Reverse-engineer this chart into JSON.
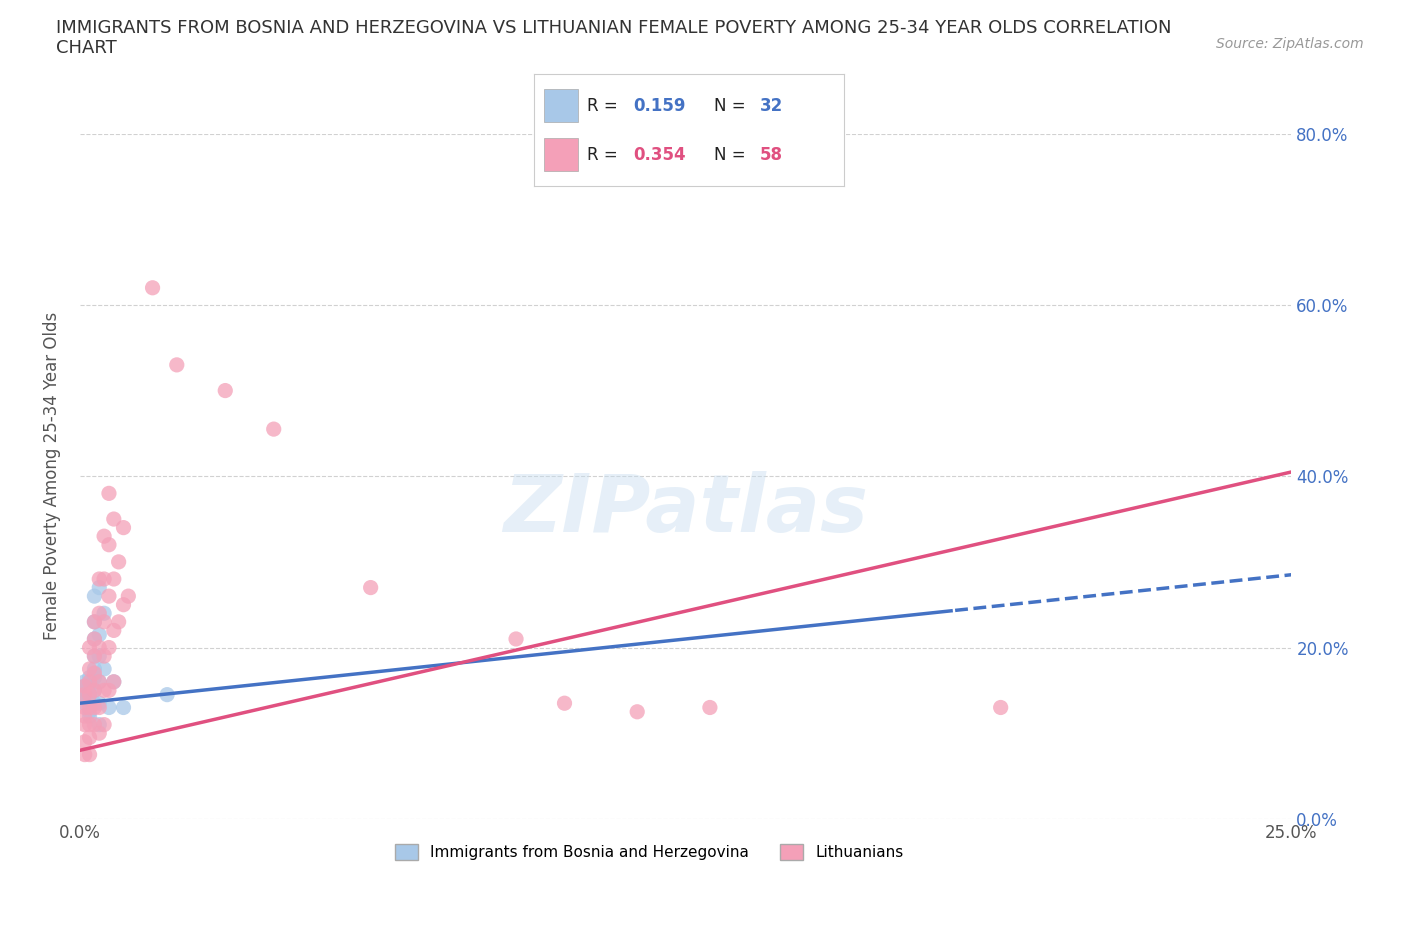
{
  "title": "IMMIGRANTS FROM BOSNIA AND HERZEGOVINA VS LITHUANIAN FEMALE POVERTY AMONG 25-34 YEAR OLDS CORRELATION\nCHART",
  "source": "Source: ZipAtlas.com",
  "ylabel": "Female Poverty Among 25-34 Year Olds",
  "xlim": [
    0.0,
    0.25
  ],
  "ylim": [
    0.0,
    0.8
  ],
  "yticks": [
    0.0,
    0.2,
    0.4,
    0.6,
    0.8
  ],
  "ytick_labels_left": [
    "",
    "",
    "",
    "",
    ""
  ],
  "ytick_labels_right": [
    "0.0%",
    "20.0%",
    "40.0%",
    "60.0%",
    "80.0%"
  ],
  "xticks": [
    0.0,
    0.05,
    0.1,
    0.15,
    0.2,
    0.25
  ],
  "xtick_labels": [
    "0.0%",
    "",
    "",
    "",
    "",
    "25.0%"
  ],
  "blue_R": 0.159,
  "blue_N": 32,
  "pink_R": 0.354,
  "pink_N": 58,
  "blue_color": "#a8c8e8",
  "pink_color": "#f4a0b8",
  "blue_line_color": "#4472c4",
  "pink_line_color": "#e05080",
  "blue_line_intercept": 0.135,
  "blue_line_slope": 0.6,
  "blue_line_solid_end": 0.18,
  "pink_line_intercept": 0.08,
  "pink_line_slope": 1.3,
  "blue_scatter": [
    [
      0.001,
      0.155
    ],
    [
      0.001,
      0.145
    ],
    [
      0.001,
      0.16
    ],
    [
      0.001,
      0.15
    ],
    [
      0.001,
      0.14
    ],
    [
      0.001,
      0.135
    ],
    [
      0.002,
      0.165
    ],
    [
      0.002,
      0.155
    ],
    [
      0.002,
      0.145
    ],
    [
      0.002,
      0.135
    ],
    [
      0.002,
      0.125
    ],
    [
      0.002,
      0.12
    ],
    [
      0.003,
      0.26
    ],
    [
      0.003,
      0.23
    ],
    [
      0.003,
      0.21
    ],
    [
      0.003,
      0.19
    ],
    [
      0.003,
      0.175
    ],
    [
      0.003,
      0.165
    ],
    [
      0.003,
      0.15
    ],
    [
      0.003,
      0.135
    ],
    [
      0.004,
      0.27
    ],
    [
      0.004,
      0.215
    ],
    [
      0.004,
      0.19
    ],
    [
      0.004,
      0.16
    ],
    [
      0.004,
      0.135
    ],
    [
      0.004,
      0.11
    ],
    [
      0.005,
      0.24
    ],
    [
      0.005,
      0.175
    ],
    [
      0.006,
      0.13
    ],
    [
      0.007,
      0.16
    ],
    [
      0.009,
      0.13
    ],
    [
      0.018,
      0.145
    ]
  ],
  "pink_scatter": [
    [
      0.001,
      0.155
    ],
    [
      0.001,
      0.145
    ],
    [
      0.001,
      0.13
    ],
    [
      0.001,
      0.12
    ],
    [
      0.001,
      0.11
    ],
    [
      0.001,
      0.09
    ],
    [
      0.001,
      0.075
    ],
    [
      0.002,
      0.2
    ],
    [
      0.002,
      0.175
    ],
    [
      0.002,
      0.16
    ],
    [
      0.002,
      0.145
    ],
    [
      0.002,
      0.13
    ],
    [
      0.002,
      0.11
    ],
    [
      0.002,
      0.095
    ],
    [
      0.002,
      0.075
    ],
    [
      0.003,
      0.23
    ],
    [
      0.003,
      0.21
    ],
    [
      0.003,
      0.19
    ],
    [
      0.003,
      0.17
    ],
    [
      0.003,
      0.15
    ],
    [
      0.003,
      0.13
    ],
    [
      0.003,
      0.11
    ],
    [
      0.004,
      0.28
    ],
    [
      0.004,
      0.24
    ],
    [
      0.004,
      0.2
    ],
    [
      0.004,
      0.16
    ],
    [
      0.004,
      0.13
    ],
    [
      0.004,
      0.1
    ],
    [
      0.005,
      0.33
    ],
    [
      0.005,
      0.28
    ],
    [
      0.005,
      0.23
    ],
    [
      0.005,
      0.19
    ],
    [
      0.005,
      0.15
    ],
    [
      0.005,
      0.11
    ],
    [
      0.006,
      0.38
    ],
    [
      0.006,
      0.32
    ],
    [
      0.006,
      0.26
    ],
    [
      0.006,
      0.2
    ],
    [
      0.006,
      0.15
    ],
    [
      0.007,
      0.35
    ],
    [
      0.007,
      0.28
    ],
    [
      0.007,
      0.22
    ],
    [
      0.007,
      0.16
    ],
    [
      0.008,
      0.3
    ],
    [
      0.008,
      0.23
    ],
    [
      0.009,
      0.34
    ],
    [
      0.009,
      0.25
    ],
    [
      0.01,
      0.26
    ],
    [
      0.015,
      0.62
    ],
    [
      0.02,
      0.53
    ],
    [
      0.03,
      0.5
    ],
    [
      0.04,
      0.455
    ],
    [
      0.06,
      0.27
    ],
    [
      0.09,
      0.21
    ],
    [
      0.1,
      0.135
    ],
    [
      0.115,
      0.125
    ],
    [
      0.13,
      0.13
    ],
    [
      0.19,
      0.13
    ]
  ],
  "watermark": "ZIPatlas",
  "background_color": "#ffffff",
  "grid_color": "#cccccc",
  "title_color": "#333333",
  "axis_label_color": "#555555",
  "tick_color": "#555555",
  "right_tick_color": "#4472c4"
}
